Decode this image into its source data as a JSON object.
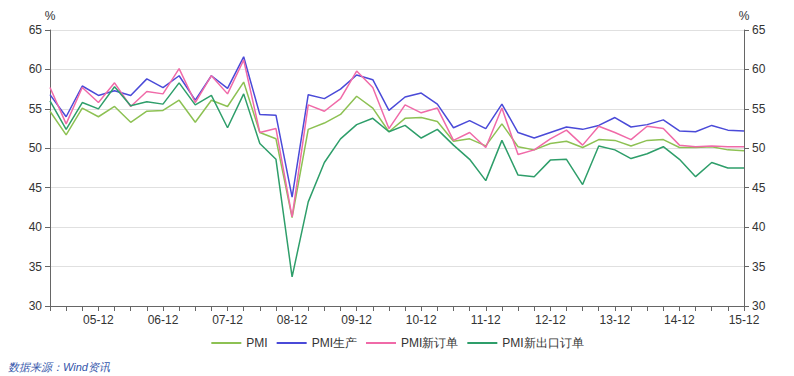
{
  "chart_data": {
    "type": "line",
    "y_label": "%",
    "y2_label": "%",
    "source": "数据来源：Wind资讯",
    "categories": [
      null,
      null,
      null,
      "05-12",
      null,
      null,
      null,
      "06-12",
      null,
      null,
      null,
      "07-12",
      null,
      null,
      null,
      "08-12",
      null,
      null,
      null,
      "09-12",
      null,
      null,
      null,
      "10-12",
      null,
      null,
      null,
      "11-12",
      null,
      null,
      null,
      "12-12",
      null,
      null,
      null,
      "13-12",
      null,
      null,
      null,
      "14-12",
      null,
      null,
      null,
      "15-12"
    ],
    "ylim": [
      30,
      65
    ],
    "yticks": [
      30,
      35,
      40,
      45,
      50,
      55,
      60,
      65
    ],
    "y2lim": [
      30,
      65
    ],
    "y2ticks": [
      30,
      35,
      40,
      45,
      50,
      55,
      60,
      65
    ],
    "grid": true,
    "legend": "bottom",
    "series": [
      {
        "name": "PMI",
        "color": "#8dc153",
        "values": [
          54.7,
          51.7,
          55.1,
          54.0,
          55.3,
          53.3,
          54.7,
          54.8,
          56.1,
          53.3,
          56.1,
          55.3,
          58.4,
          52.0,
          51.2,
          41.2,
          52.4,
          53.2,
          54.3,
          56.6,
          55.1,
          52.1,
          53.8,
          53.9,
          53.4,
          50.9,
          51.2,
          50.3,
          53.1,
          50.2,
          49.8,
          50.6,
          50.9,
          50.1,
          51.1,
          51.0,
          50.3,
          51.0,
          51.1,
          50.1,
          50.1,
          50.2,
          49.8,
          49.7
        ]
      },
      {
        "name": "PMI生产",
        "color": "#4a4ad8",
        "values": [
          56.8,
          54.0,
          57.9,
          56.7,
          57.3,
          56.7,
          58.8,
          57.7,
          59.2,
          56.1,
          59.2,
          57.6,
          61.6,
          54.3,
          54.2,
          43.8,
          56.8,
          56.3,
          57.5,
          59.3,
          58.7,
          54.8,
          56.5,
          57.0,
          55.6,
          52.6,
          53.5,
          52.5,
          55.6,
          52.0,
          51.3,
          52.0,
          52.7,
          52.4,
          52.9,
          53.9,
          52.7,
          53.0,
          53.6,
          52.2,
          52.1,
          52.9,
          52.3,
          52.2
        ]
      },
      {
        "name": "PMI新订单",
        "color": "#f06aa8",
        "values": [
          57.7,
          53.1,
          57.7,
          55.8,
          58.3,
          55.3,
          57.2,
          56.9,
          60.1,
          55.8,
          59.2,
          56.9,
          61.2,
          52.0,
          52.5,
          41.3,
          55.5,
          54.7,
          56.3,
          59.8,
          57.7,
          52.5,
          55.5,
          54.5,
          55.1,
          51.0,
          52.0,
          50.1,
          55.1,
          49.2,
          49.8,
          51.2,
          52.3,
          50.4,
          52.8,
          52.0,
          51.1,
          52.8,
          52.5,
          50.4,
          50.2,
          50.3,
          50.2,
          50.2
        ]
      },
      {
        "name": "PMI新出口订单",
        "color": "#2e9e6a",
        "values": [
          56.0,
          52.4,
          55.8,
          55.0,
          57.8,
          55.4,
          55.9,
          55.6,
          58.3,
          55.5,
          56.7,
          52.6,
          56.9,
          50.6,
          48.6,
          33.7,
          43.2,
          48.2,
          51.2,
          53.0,
          53.8,
          52.1,
          52.9,
          51.3,
          52.4,
          50.4,
          48.6,
          45.9,
          51.0,
          46.6,
          46.4,
          48.5,
          48.6,
          45.4,
          50.3,
          49.8,
          48.7,
          49.3,
          50.2,
          48.6,
          46.4,
          48.2,
          47.5,
          47.5
        ]
      }
    ]
  }
}
